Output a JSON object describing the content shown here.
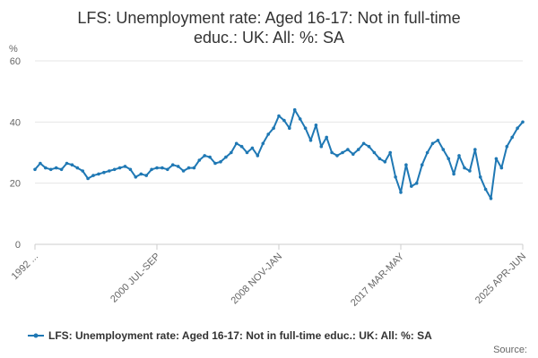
{
  "chart_data": {
    "type": "line",
    "title_line1": "LFS: Unemployment rate: Aged 16-17: Not in full-time",
    "title_line2": "educ.: UK: All: %: SA",
    "ylabel": "%",
    "ylim": [
      0,
      60
    ],
    "y_ticks": [
      "0",
      "20",
      "40",
      "60"
    ],
    "x_ticks": [
      "1992 ...",
      "2000 JUL-SEP",
      "2008 NOV-JAN",
      "2017 MAR-MAY",
      "2025 APR-JUN"
    ],
    "grid": true,
    "legend_position": "bottom",
    "source_label": "Source:",
    "series": [
      {
        "name": "LFS: Unemployment rate: Aged 16-17: Not in full-time educ.: UK: All: %: SA",
        "color": "#1f78b4",
        "x_start": "1992-04",
        "x_end": "2025-04",
        "values": [
          24.5,
          26.5,
          25,
          24.5,
          25,
          24.5,
          26.5,
          26,
          25,
          24,
          21.5,
          22.5,
          23,
          23.5,
          24,
          24.5,
          25,
          25.5,
          24.5,
          22,
          23,
          22.5,
          24.5,
          25,
          25,
          24.5,
          26,
          25.5,
          24,
          25,
          25,
          27.5,
          29,
          28.5,
          26.5,
          27,
          28.5,
          30,
          33,
          32,
          30,
          31.5,
          29,
          33,
          36,
          38,
          42,
          40.5,
          38,
          44,
          41,
          38,
          34,
          39,
          32,
          35,
          30,
          29,
          30,
          31,
          29.5,
          31,
          33,
          32,
          30,
          28,
          27,
          30,
          22,
          17,
          26,
          19,
          20,
          26,
          30,
          33,
          34,
          31,
          28,
          23,
          29,
          25,
          24,
          31,
          22,
          18,
          15,
          28,
          25,
          32,
          35,
          38,
          40
        ]
      }
    ]
  }
}
